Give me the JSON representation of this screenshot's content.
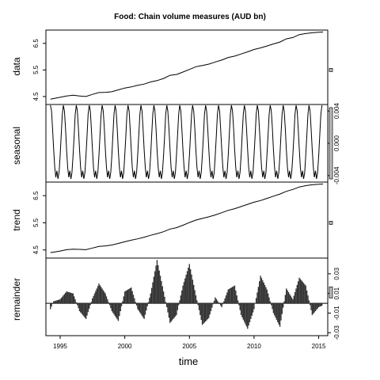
{
  "chart_data": {
    "type": "line",
    "title": "Food: Chain volume measures (AUD bn)",
    "xlabel": "time",
    "xlim": [
      1993.9,
      2015.7
    ],
    "x_ticks": [
      1995,
      2000,
      2005,
      2010,
      2015
    ],
    "x_tick_labels": [
      "1995",
      "2000",
      "2005",
      "2010",
      "2015"
    ],
    "grid": false,
    "panels": [
      {
        "name": "data",
        "ylabel": "data",
        "type": "line",
        "ylim": [
          4.2,
          7.0
        ],
        "y_ticks": [
          4.5,
          5.5,
          6.5
        ],
        "y_tick_labels": [
          "4.5",
          "5.5",
          "6.5"
        ],
        "x": [
          1994.25,
          1995.0,
          1995.5,
          1996.0,
          1996.5,
          1997.0,
          1997.5,
          1998.0,
          1998.5,
          1999.0,
          1999.5,
          2000.0,
          2000.5,
          2001.0,
          2001.5,
          2002.0,
          2002.5,
          2003.0,
          2003.5,
          2004.0,
          2004.5,
          2005.0,
          2005.5,
          2006.0,
          2006.5,
          2007.0,
          2007.5,
          2008.0,
          2008.5,
          2009.0,
          2009.5,
          2010.0,
          2010.5,
          2011.0,
          2011.5,
          2012.0,
          2012.5,
          2013.0,
          2013.5,
          2014.0,
          2014.5,
          2015.0,
          2015.33
        ],
        "values": [
          4.4,
          4.47,
          4.52,
          4.55,
          4.52,
          4.5,
          4.58,
          4.65,
          4.66,
          4.68,
          4.75,
          4.82,
          4.86,
          4.92,
          4.97,
          5.05,
          5.1,
          5.18,
          5.3,
          5.33,
          5.42,
          5.52,
          5.62,
          5.67,
          5.72,
          5.8,
          5.87,
          5.97,
          6.02,
          6.1,
          6.18,
          6.27,
          6.33,
          6.4,
          6.48,
          6.55,
          6.67,
          6.72,
          6.83,
          6.87,
          6.9,
          6.92,
          6.93
        ]
      },
      {
        "name": "seasonal",
        "ylabel": "seasonal",
        "type": "line",
        "ylim": [
          -0.0048,
          0.0048
        ],
        "y_ticks": [
          -0.004,
          0.0,
          0.004
        ],
        "y_tick_labels": [
          "-0.004",
          "0.000",
          "0.004"
        ],
        "period": 12,
        "pattern": [
          0.0047,
          0.004,
          0.0018,
          -0.0008,
          -0.003,
          -0.0042,
          -0.0034,
          -0.0044,
          -0.0036,
          -0.0015,
          0.001,
          0.0036
        ],
        "x_start": 1994.25,
        "x_end": 2015.33
      },
      {
        "name": "trend",
        "ylabel": "trend",
        "type": "line",
        "ylim": [
          4.2,
          7.0
        ],
        "y_ticks": [
          4.5,
          5.5,
          6.5
        ],
        "y_tick_labels": [
          "4.5",
          "5.5",
          "6.5"
        ],
        "x": [
          1994.25,
          1995.0,
          1995.5,
          1996.0,
          1996.5,
          1997.0,
          1997.5,
          1998.0,
          1998.5,
          1999.0,
          1999.5,
          2000.0,
          2000.5,
          2001.0,
          2001.5,
          2002.0,
          2002.5,
          2003.0,
          2003.5,
          2004.0,
          2004.5,
          2005.0,
          2005.5,
          2006.0,
          2006.5,
          2007.0,
          2007.5,
          2008.0,
          2008.5,
          2009.0,
          2009.5,
          2010.0,
          2010.5,
          2011.0,
          2011.5,
          2012.0,
          2012.5,
          2013.0,
          2013.5,
          2014.0,
          2014.5,
          2015.0,
          2015.33
        ],
        "values": [
          4.4,
          4.46,
          4.51,
          4.53,
          4.52,
          4.51,
          4.57,
          4.63,
          4.65,
          4.68,
          4.74,
          4.8,
          4.86,
          4.91,
          4.97,
          5.04,
          5.1,
          5.17,
          5.27,
          5.32,
          5.41,
          5.51,
          5.6,
          5.66,
          5.72,
          5.79,
          5.87,
          5.96,
          6.02,
          6.1,
          6.18,
          6.26,
          6.32,
          6.4,
          6.48,
          6.56,
          6.66,
          6.73,
          6.82,
          6.87,
          6.9,
          6.92,
          6.93
        ]
      },
      {
        "name": "remainder",
        "ylabel": "remainder",
        "type": "bar",
        "ylim": [
          -0.033,
          0.046
        ],
        "y_ticks": [
          -0.03,
          -0.01,
          0.01,
          0.03
        ],
        "y_tick_labels": [
          "-0.03",
          "-0.01",
          "0.01",
          "0.03"
        ],
        "x": [
          1994.25,
          1994.5,
          1995.0,
          1995.5,
          1996.0,
          1996.5,
          1997.0,
          1997.5,
          1998.0,
          1998.5,
          1999.0,
          1999.5,
          2000.0,
          2000.5,
          2001.0,
          2001.5,
          2002.0,
          2002.5,
          2003.0,
          2003.5,
          2004.0,
          2004.5,
          2005.0,
          2005.5,
          2006.0,
          2006.5,
          2007.0,
          2007.5,
          2008.0,
          2008.5,
          2009.0,
          2009.5,
          2010.0,
          2010.5,
          2011.0,
          2011.5,
          2012.0,
          2012.5,
          2013.0,
          2013.5,
          2014.0,
          2014.5,
          2015.0,
          2015.33
        ],
        "values": [
          -0.006,
          0.002,
          0.004,
          0.012,
          0.01,
          -0.008,
          -0.016,
          0.005,
          0.02,
          0.01,
          -0.008,
          -0.018,
          0.012,
          0.016,
          -0.006,
          -0.016,
          0.01,
          0.044,
          0.012,
          -0.02,
          -0.012,
          0.018,
          0.04,
          0.008,
          -0.022,
          -0.015,
          0.006,
          -0.004,
          0.014,
          0.018,
          -0.012,
          -0.026,
          -0.006,
          0.028,
          0.014,
          -0.01,
          -0.024,
          0.015,
          0.004,
          0.026,
          0.018,
          -0.012,
          -0.004,
          -0.002
        ]
      }
    ]
  }
}
